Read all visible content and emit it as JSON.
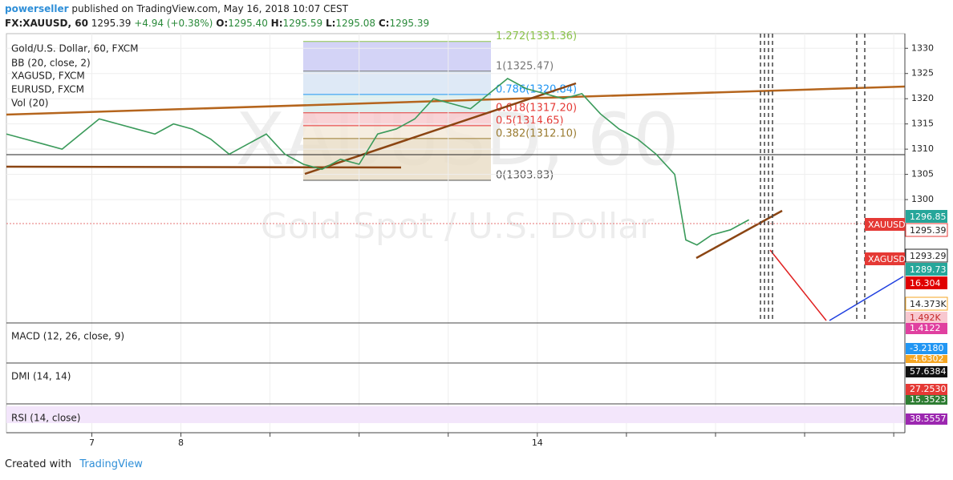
{
  "header": {
    "user": "powerseller",
    "published": "published on TradingView.com, May 16, 2018 10:07 CEST",
    "symbol": "FX:XAUUSD, 60",
    "last": "1295.39",
    "change": "+4.94 (+0.38%)",
    "o_label": "O:",
    "o": "1295.40",
    "h_label": "H:",
    "h": "1295.59",
    "l_label": "L:",
    "l": "1295.08",
    "c_label": "C:",
    "c": "1295.39"
  },
  "chart_data": {
    "type": "line",
    "title": "Gold/U.S. Dollar, 60, FXCM",
    "indicators": [
      "BB (20, close, 2)",
      "XAGUSD, FXCM",
      "EURUSD, FXCM",
      "Vol (20)"
    ],
    "watermark": "XAUUSD, 60",
    "watermark_sub": "Gold Spot / U.S. Dollar",
    "color": "#3a9a5a",
    "x": [
      0,
      5,
      10,
      15,
      20,
      25,
      30,
      35,
      40,
      45,
      50,
      55,
      60,
      65,
      70,
      75,
      80,
      85,
      90,
      95,
      100,
      105,
      110,
      115,
      120,
      125,
      130,
      135,
      140,
      145,
      150,
      155,
      160,
      165,
      170,
      175,
      180,
      183,
      186,
      190,
      195,
      200
    ],
    "values": [
      1313,
      1312,
      1311,
      1310,
      1313,
      1316,
      1315,
      1314,
      1313,
      1315,
      1314,
      1312,
      1309,
      1311,
      1313,
      1309,
      1307,
      1306,
      1308,
      1307,
      1313,
      1314,
      1316,
      1320,
      1319,
      1318,
      1321,
      1324,
      1322,
      1321,
      1320,
      1321,
      1317,
      1314,
      1312,
      1309,
      1305,
      1292,
      1291,
      1293,
      1294,
      1296
    ],
    "xlim": [
      0,
      242
    ],
    "xticks": [
      {
        "value": 23,
        "label": "7"
      },
      {
        "value": 47,
        "label": "8"
      },
      {
        "value": 143,
        "label": "14"
      }
    ],
    "x_gridlines": [
      71,
      95,
      119,
      167,
      191,
      215,
      239
    ],
    "ylim": [
      1275.7,
      1332.9
    ],
    "yticks": [
      1300,
      1305,
      1310,
      1315,
      1320,
      1325,
      1330
    ],
    "grid": true,
    "fib": [
      {
        "value": 1331.36,
        "label": "1.272(1331.36)",
        "color": "#8bc34a"
      },
      {
        "value": 1325.47,
        "label": "1(1325.47)",
        "color": "#777777"
      },
      {
        "value": 1320.84,
        "label": "0.786(1320.84)",
        "color": "#2196f3"
      },
      {
        "value": 1317.2,
        "label": "0.618(1317.20)",
        "color": "#e53935"
      },
      {
        "value": 1314.65,
        "label": "0.5(1314.65)",
        "color": "#e53935"
      },
      {
        "value": 1312.1,
        "label": "0.382(1312.10)",
        "color": "#9a7b30"
      },
      {
        "value": 1303.83,
        "label": "0(1303.83)",
        "color": "#555555"
      }
    ],
    "fib_fills": [
      "#c8c8f4",
      "#d6e4f4",
      "#d6ecec",
      "#f8c8cc",
      "#f4e8d8",
      "#e8dcc4"
    ]
  },
  "tags": {
    "xau": "XAUUSD",
    "p1": "1296.85",
    "p2": "1295.39",
    "xag": "XAGUSD",
    "p3": "1293.29",
    "p4": "1289.73",
    "p5": "16.304",
    "v1": "14.373K",
    "v2": "1.492K"
  },
  "panes": {
    "macd": "MACD (12, 26, close, 9)",
    "macd_a": "1.4122",
    "macd_b": "-3.2180",
    "macd_c": "-4.6302",
    "dmi": "DMI (14, 14)",
    "dmi_a": "57.6384",
    "dmi_b": "27.2530",
    "dmi_c": "15.3523",
    "rsi": "RSI (14, close)",
    "rsi_a": "38.5557"
  },
  "footer": {
    "created": "Created with",
    "brand": "TradingView"
  }
}
